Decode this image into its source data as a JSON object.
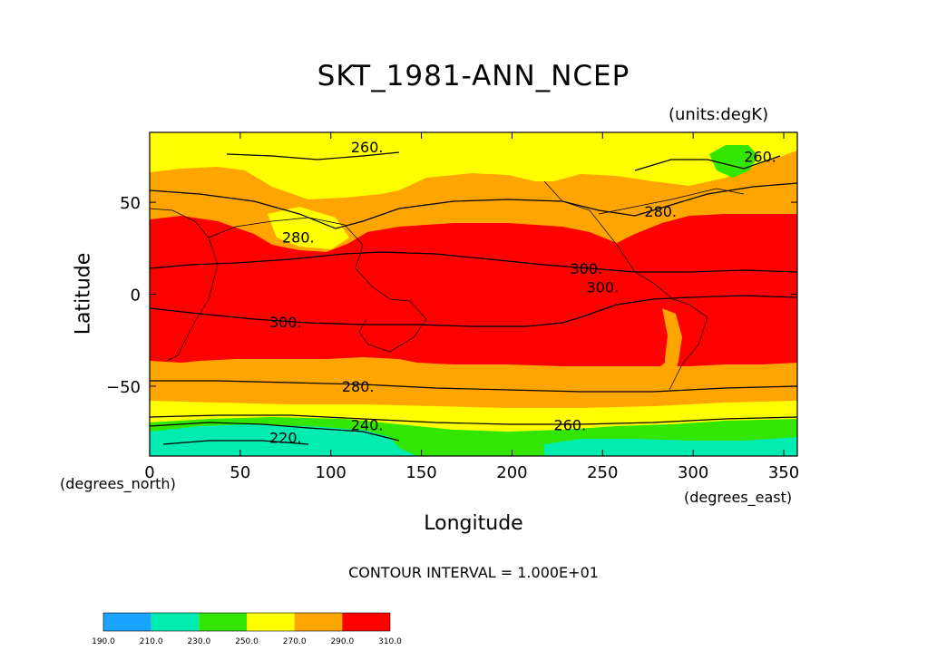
{
  "chart_data": {
    "type": "heatmap",
    "title": "SKT_1981-ANN_NCEP",
    "units": "(units:degK)",
    "xlabel": "Longitude",
    "ylabel": "Latitude",
    "x_unit": "(degrees_east)",
    "y_unit": "(degrees_north)",
    "xlim": [
      0,
      357.5
    ],
    "ylim": [
      -88,
      88
    ],
    "xticks": [
      0,
      50,
      100,
      150,
      200,
      250,
      300,
      350
    ],
    "yticks": [
      -50,
      0,
      50
    ],
    "contour_interval_text": "CONTOUR INTERVAL = 1.000E+01",
    "colorbar": {
      "levels": [
        "190.0",
        "210.0",
        "230.0",
        "250.0",
        "270.0",
        "290.0",
        "310.0"
      ],
      "colors": [
        "#1aa3ff",
        "#00ecb0",
        "#33e600",
        "#ffff00",
        "#ffa500",
        "#ff0000"
      ]
    },
    "contour_labels": [
      {
        "text": "260.",
        "lon": 120,
        "lat": 80
      },
      {
        "text": "260.",
        "lon": 337,
        "lat": 75
      },
      {
        "text": "280.",
        "lon": 282,
        "lat": 45
      },
      {
        "text": "280.",
        "lon": 82,
        "lat": 31
      },
      {
        "text": "300.",
        "lon": 241,
        "lat": 14
      },
      {
        "text": "300.",
        "lon": 250,
        "lat": 4
      },
      {
        "text": "300.",
        "lon": 75,
        "lat": -15
      },
      {
        "text": "280.",
        "lon": 115,
        "lat": -50
      },
      {
        "text": "240.",
        "lon": 120,
        "lat": -71
      },
      {
        "text": "220.",
        "lon": 75,
        "lat": -78
      },
      {
        "text": "260.",
        "lon": 232,
        "lat": -71
      }
    ],
    "bands": [
      {
        "value": "270-290",
        "lat_top": 88,
        "lat_bottom": 45
      },
      {
        "value": "250-270",
        "lat_top": 88,
        "lat_bottom": 63
      },
      {
        "value": "290-310",
        "lat_top": 40,
        "lat_bottom": -38
      },
      {
        "value": "270-290",
        "lat_top": -38,
        "lat_bottom": -60
      },
      {
        "value": "250-270",
        "lat_top": -60,
        "lat_bottom": -70
      },
      {
        "value": "230-250",
        "lat_top": -70,
        "lat_bottom": -88
      },
      {
        "value": "210-230",
        "lat_top": -72,
        "lat_bottom": -88
      }
    ]
  }
}
